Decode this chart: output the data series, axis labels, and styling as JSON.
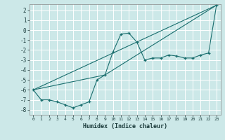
{
  "xlabel": "Humidex (Indice chaleur)",
  "background_color": "#cce8e8",
  "grid_color": "#ffffff",
  "line_color": "#1a6e6e",
  "x_ticks": [
    0,
    1,
    2,
    3,
    4,
    5,
    6,
    7,
    8,
    9,
    10,
    11,
    12,
    13,
    14,
    15,
    16,
    17,
    18,
    19,
    20,
    21,
    22,
    23
  ],
  "ylim": [
    -8.5,
    2.6
  ],
  "xlim": [
    -0.5,
    23.5
  ],
  "yticks": [
    2,
    1,
    0,
    -1,
    -2,
    -3,
    -4,
    -5,
    -6,
    -7,
    -8
  ],
  "series": [
    {
      "x": [
        0,
        1,
        2,
        3,
        4,
        5,
        6,
        7,
        8,
        9,
        10,
        11,
        12,
        13,
        14,
        15,
        16,
        17,
        18,
        19,
        20,
        21,
        22,
        23
      ],
      "y": [
        -6.0,
        -7.0,
        -7.0,
        -7.2,
        -7.5,
        -7.8,
        -7.5,
        -7.2,
        -5.0,
        -4.5,
        -2.2,
        -0.4,
        -0.3,
        -1.2,
        -3.0,
        -2.8,
        -2.8,
        -2.5,
        -2.6,
        -2.8,
        -2.8,
        -2.5,
        -2.3,
        2.5
      ],
      "marker": "+",
      "linestyle": "-"
    },
    {
      "x": [
        0,
        23
      ],
      "y": [
        -6.0,
        2.5
      ],
      "marker": null,
      "linestyle": "-"
    },
    {
      "x": [
        0,
        9,
        23
      ],
      "y": [
        -6.0,
        -4.5,
        2.5
      ],
      "marker": null,
      "linestyle": "-"
    }
  ]
}
